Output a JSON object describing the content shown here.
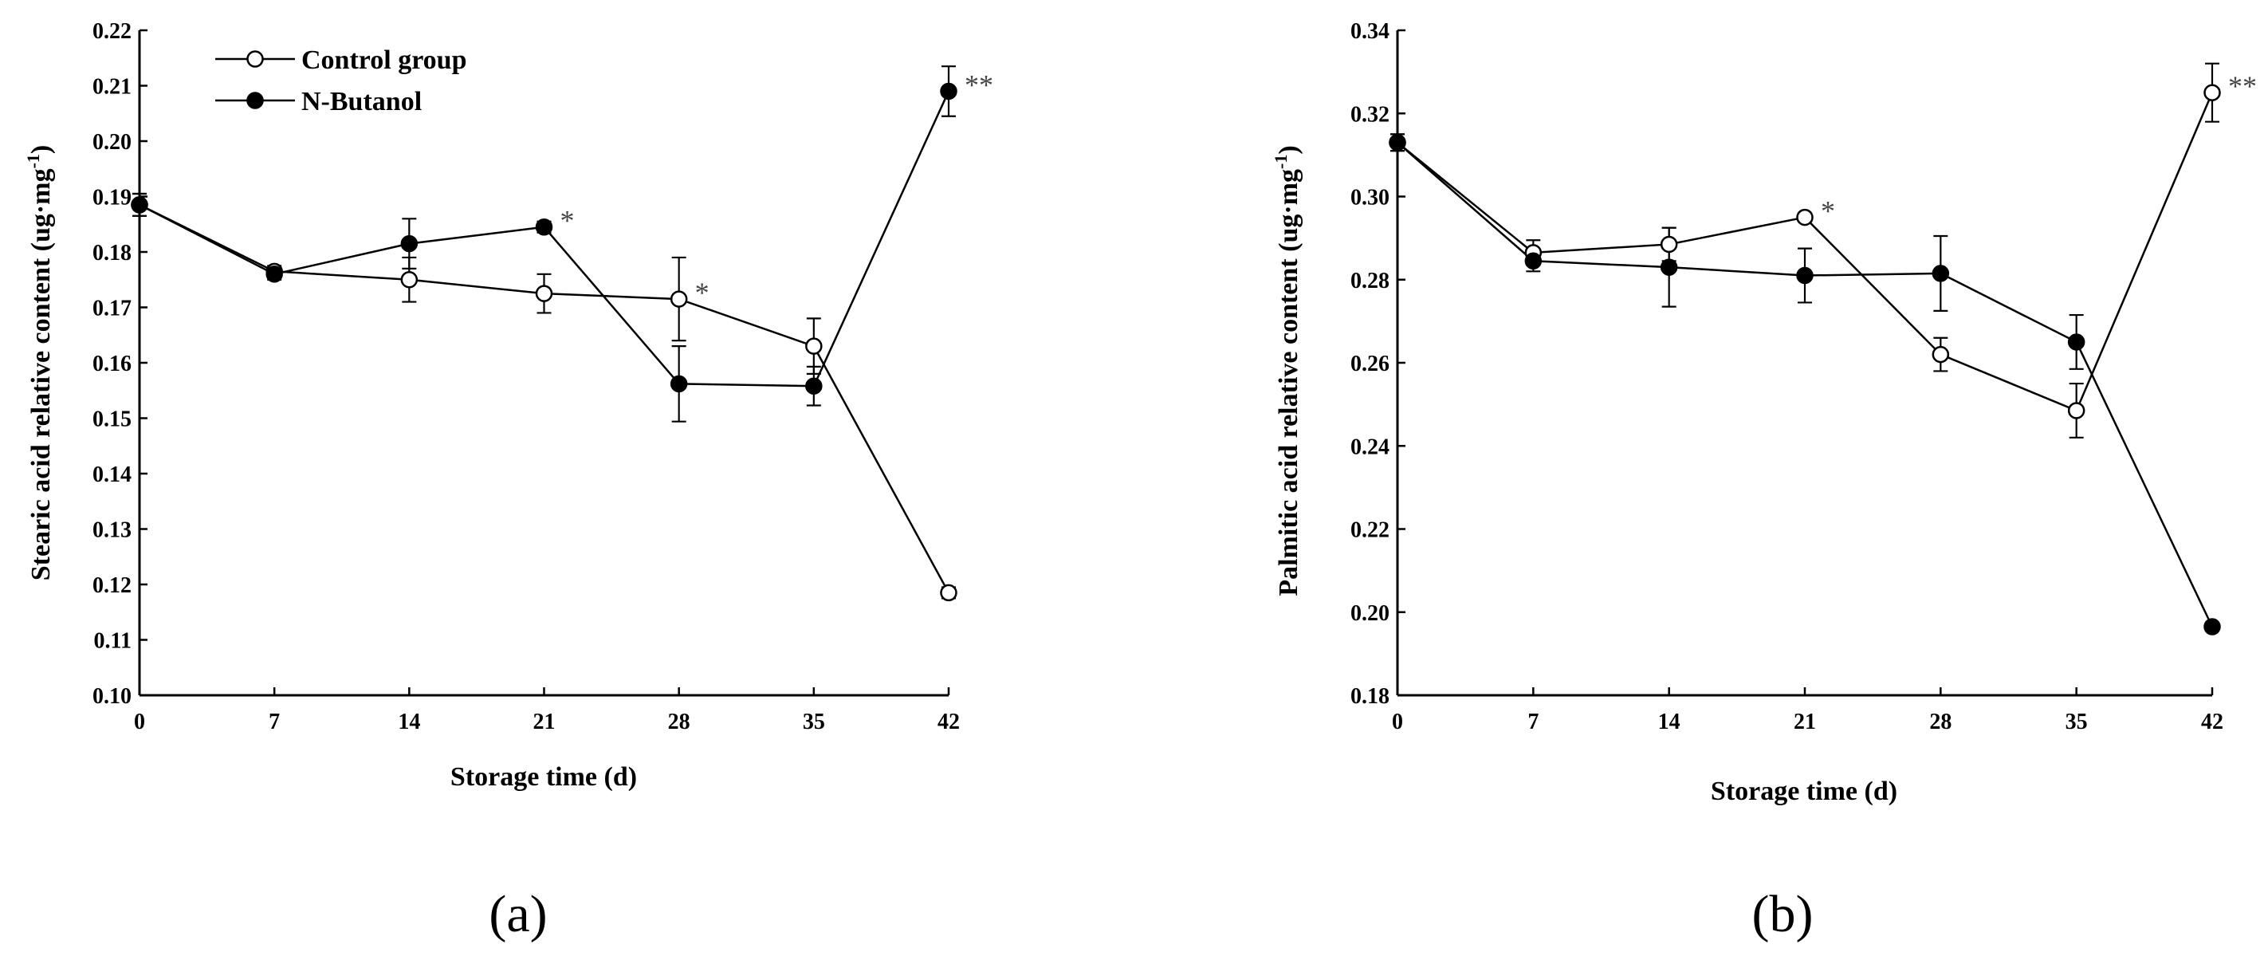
{
  "chart_data": [
    {
      "type": "line",
      "panel_label": "(a)",
      "xlabel": "Storage time (d)",
      "ylabel_main": "Stearic acid relative content (ug·mg",
      "ylabel_sup": "-1",
      "ylabel_end": ")",
      "x": [
        0,
        7,
        14,
        21,
        28,
        35,
        42
      ],
      "x_ticks": [
        "0",
        "7",
        "14",
        "21",
        "28",
        "35",
        "42"
      ],
      "xlim": [
        0,
        42
      ],
      "ylim": [
        0.1,
        0.22
      ],
      "y_ticks": [
        "0.10",
        "0.11",
        "0.12",
        "0.13",
        "0.14",
        "0.15",
        "0.16",
        "0.17",
        "0.18",
        "0.19",
        "0.20",
        "0.21",
        "0.22"
      ],
      "legend": {
        "position": "top-left"
      },
      "series": [
        {
          "name": "Control group",
          "marker": "open-circle",
          "values": [
            0.1885,
            0.1765,
            0.175,
            0.1725,
            0.1715,
            0.163,
            0.1185
          ],
          "errors": [
            0.002,
            0.001,
            0.004,
            0.0035,
            0.0075,
            0.005,
            0.001
          ]
        },
        {
          "name": "N-Butanol",
          "marker": "filled-circle",
          "values": [
            0.1885,
            0.176,
            0.1815,
            0.1845,
            0.1562,
            0.1558,
            0.209
          ],
          "errors": [
            0.002,
            0.001,
            0.0045,
            0.001,
            0.0068,
            0.0035,
            0.0045
          ]
        }
      ],
      "annotations": [
        {
          "text": "*",
          "x": 21,
          "y": 0.1845
        },
        {
          "text": "*",
          "x": 28,
          "y": 0.1715
        },
        {
          "text": "**",
          "x": 42,
          "y": 0.209
        }
      ]
    },
    {
      "type": "line",
      "panel_label": "(b)",
      "xlabel": "Storage time (d)",
      "ylabel_main": "Palmitic acid relative content (ug·mg",
      "ylabel_sup": "-1",
      "ylabel_end": ")",
      "x": [
        0,
        7,
        14,
        21,
        28,
        35,
        42
      ],
      "x_ticks": [
        "0",
        "7",
        "14",
        "21",
        "28",
        "35",
        "42"
      ],
      "xlim": [
        0,
        42
      ],
      "ylim": [
        0.18,
        0.34
      ],
      "y_ticks": [
        "0.18",
        "0.20",
        "0.22",
        "0.24",
        "0.26",
        "0.28",
        "0.30",
        "0.32",
        "0.34"
      ],
      "series": [
        {
          "name": "Control group",
          "marker": "open-circle",
          "values": [
            0.313,
            0.2865,
            0.2885,
            0.295,
            0.262,
            0.2485,
            0.325
          ],
          "errors": [
            0.002,
            0.003,
            0.004,
            0.001,
            0.004,
            0.0065,
            0.007
          ]
        },
        {
          "name": "N-Butanol",
          "marker": "filled-circle",
          "values": [
            0.313,
            0.2845,
            0.283,
            0.281,
            0.2815,
            0.265,
            0.1965
          ],
          "errors": [
            0.002,
            0.0025,
            0.0095,
            0.0065,
            0.009,
            0.0065,
            0.001
          ]
        }
      ],
      "annotations": [
        {
          "text": "*",
          "x": 21,
          "y": 0.295
        },
        {
          "text": "**",
          "x": 42,
          "y": 0.325
        }
      ]
    }
  ]
}
